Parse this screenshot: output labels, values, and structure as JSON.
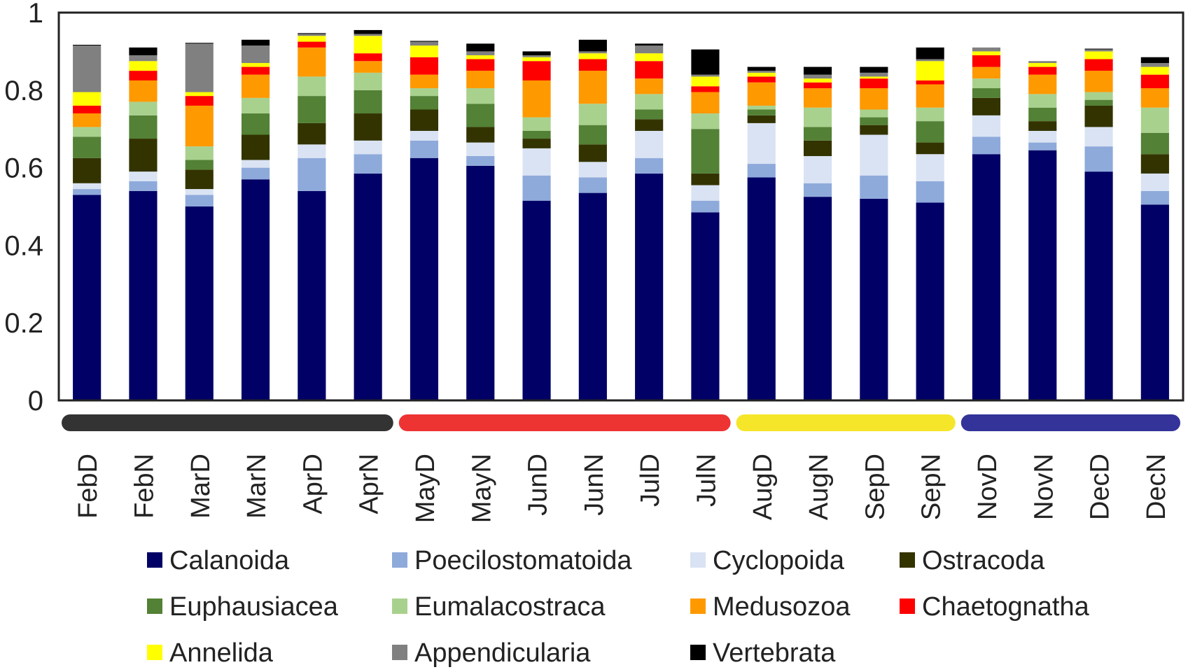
{
  "chart_data": {
    "type": "bar",
    "stacked": true,
    "title": "",
    "xlabel": "",
    "ylabel": "",
    "ylim": [
      0,
      1
    ],
    "yticks": [
      "0",
      "0.2",
      "0.4",
      "0.6",
      "0.8",
      "1"
    ],
    "categories": [
      "FebD",
      "FebN",
      "MarD",
      "MarN",
      "AprD",
      "AprN",
      "MayD",
      "MayN",
      "JunD",
      "JunN",
      "JulD",
      "JulN",
      "AugD",
      "AugN",
      "SepD",
      "SepN",
      "NovD",
      "NovN",
      "DecD",
      "DecN"
    ],
    "series": [
      {
        "name": "Calanoida",
        "color": "#000066",
        "values": [
          0.53,
          0.54,
          0.5,
          0.57,
          0.54,
          0.585,
          0.625,
          0.605,
          0.515,
          0.535,
          0.585,
          0.485,
          0.575,
          0.525,
          0.52,
          0.51,
          0.635,
          0.645,
          0.59,
          0.505
        ]
      },
      {
        "name": "Poecilostomatoida",
        "color": "#8eaadb",
        "values": [
          0.015,
          0.025,
          0.03,
          0.03,
          0.085,
          0.05,
          0.045,
          0.025,
          0.065,
          0.04,
          0.04,
          0.03,
          0.035,
          0.035,
          0.06,
          0.055,
          0.045,
          0.02,
          0.065,
          0.035
        ]
      },
      {
        "name": "Cyclopoida",
        "color": "#dae3f3",
        "values": [
          0.015,
          0.025,
          0.015,
          0.02,
          0.035,
          0.035,
          0.025,
          0.035,
          0.07,
          0.04,
          0.07,
          0.04,
          0.105,
          0.07,
          0.105,
          0.07,
          0.055,
          0.03,
          0.05,
          0.045
        ]
      },
      {
        "name": "Ostracoda",
        "color": "#333300",
        "values": [
          0.065,
          0.085,
          0.05,
          0.065,
          0.055,
          0.07,
          0.055,
          0.04,
          0.025,
          0.045,
          0.03,
          0.03,
          0.02,
          0.04,
          0.025,
          0.03,
          0.045,
          0.025,
          0.055,
          0.05
        ]
      },
      {
        "name": "Euphausiacea",
        "color": "#538135",
        "values": [
          0.055,
          0.06,
          0.025,
          0.055,
          0.07,
          0.06,
          0.035,
          0.06,
          0.02,
          0.05,
          0.025,
          0.115,
          0.015,
          0.035,
          0.02,
          0.055,
          0.025,
          0.035,
          0.015,
          0.055
        ]
      },
      {
        "name": "Eumalacostraca",
        "color": "#a9d18e",
        "values": [
          0.025,
          0.035,
          0.035,
          0.04,
          0.05,
          0.045,
          0.02,
          0.04,
          0.035,
          0.055,
          0.04,
          0.04,
          0.01,
          0.05,
          0.02,
          0.035,
          0.025,
          0.035,
          0.02,
          0.065
        ]
      },
      {
        "name": "Medusozoa",
        "color": "#ff9900",
        "values": [
          0.035,
          0.055,
          0.105,
          0.06,
          0.075,
          0.03,
          0.035,
          0.045,
          0.095,
          0.085,
          0.04,
          0.055,
          0.06,
          0.05,
          0.055,
          0.06,
          0.03,
          0.05,
          0.055,
          0.05
        ]
      },
      {
        "name": "Chaetognatha",
        "color": "#ff0000",
        "values": [
          0.02,
          0.025,
          0.025,
          0.02,
          0.015,
          0.02,
          0.045,
          0.03,
          0.05,
          0.03,
          0.045,
          0.015,
          0.015,
          0.015,
          0.025,
          0.01,
          0.03,
          0.02,
          0.03,
          0.035
        ]
      },
      {
        "name": "Annelida",
        "color": "#ffff00",
        "values": [
          0.035,
          0.025,
          0.01,
          0.01,
          0.015,
          0.045,
          0.03,
          0.01,
          0.01,
          0.015,
          0.02,
          0.025,
          0.01,
          0.01,
          0.005,
          0.05,
          0.01,
          0.01,
          0.02,
          0.02
        ]
      },
      {
        "name": "Appendicularia",
        "color": "#808080",
        "values": [
          0.12,
          0.015,
          0.125,
          0.045,
          0.005,
          0.005,
          0.01,
          0.01,
          0.005,
          0.005,
          0.02,
          0.005,
          0.005,
          0.01,
          0.01,
          0.005,
          0.01,
          0.005,
          0.005,
          0.01
        ]
      },
      {
        "name": "Vertebrata",
        "color": "#000000",
        "values": [
          0.002,
          0.02,
          0.002,
          0.015,
          0.002,
          0.01,
          0.002,
          0.02,
          0.01,
          0.03,
          0.005,
          0.065,
          0.01,
          0.02,
          0.015,
          0.03,
          0.0,
          0.0,
          0.002,
          0.015
        ]
      }
    ],
    "season_bars": [
      {
        "color": "#333333",
        "from": "FebD",
        "to": "AprN"
      },
      {
        "color": "#ee3333",
        "from": "MayD",
        "to": "JulN"
      },
      {
        "color": "#f5e62a",
        "from": "AugD",
        "to": "SepN"
      },
      {
        "color": "#333399",
        "from": "NovD",
        "to": "DecN"
      }
    ],
    "legend": {
      "position": "bottom",
      "columns": 4
    }
  }
}
